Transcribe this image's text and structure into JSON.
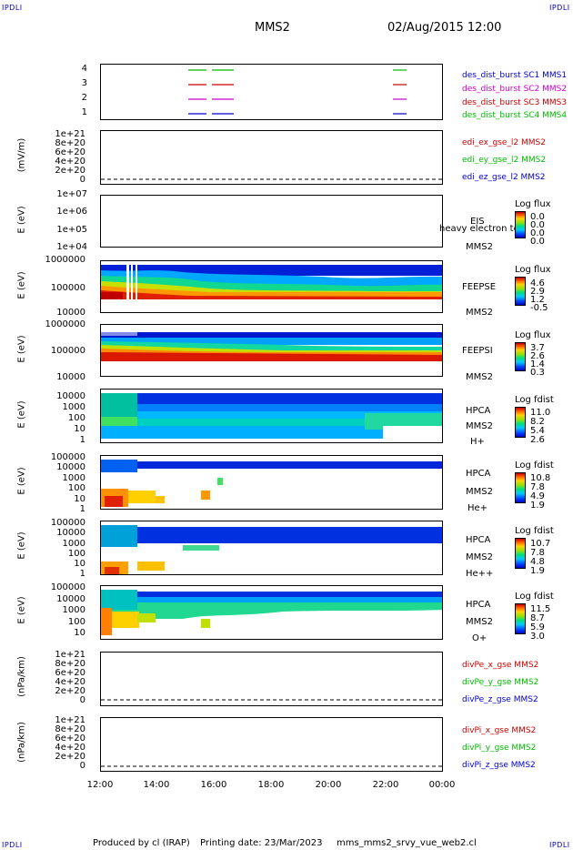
{
  "corners": {
    "tl": "IPDLI",
    "tr": "IPDLI",
    "bl": "IPDLI",
    "br": "IPDLI"
  },
  "header": {
    "spacecraft": "MMS2",
    "datetime": "02/Aug/2015 12:00"
  },
  "x_ticks": [
    "12:00",
    "14:00",
    "16:00",
    "18:00",
    "20:00",
    "22:00",
    "00:00"
  ],
  "footer": {
    "produced": "Produced by cl (IRAP)",
    "printing": "Printing date: 23/Mar/2023",
    "file": "mms_mms2_srvy_vue_web2.cl"
  },
  "chart_data": [
    {
      "type": "line",
      "id": "burst",
      "y_ticks": [
        "4",
        "3",
        "2",
        "1"
      ],
      "legend": [
        {
          "label": "des_dist_burst SC1 MMS1",
          "color": "#0000cc"
        },
        {
          "label": "des_dist_burst SC2 MMS2",
          "color": "#cc00cc"
        },
        {
          "label": "des_dist_burst SC3 MMS3",
          "color": "#cc0000"
        },
        {
          "label": "des_dist_burst SC4 MMS4",
          "color": "#00bb00"
        }
      ]
    },
    {
      "type": "line",
      "id": "edi",
      "ylabel": "(mV/m)",
      "y_ticks": [
        "1e+21",
        "8e+20",
        "6e+20",
        "4e+20",
        "2e+20",
        "0"
      ],
      "legend": [
        {
          "label": "edi_ex_gse_l2 MMS2",
          "color": "#cc0000"
        },
        {
          "label": "edi_ey_gse_l2 MMS2",
          "color": "#00bb00"
        },
        {
          "label": "edi_ez_gse_l2 MMS2",
          "color": "#0000cc"
        }
      ]
    },
    {
      "type": "heatmap",
      "id": "eis",
      "ylabel": "E (eV)",
      "y_ticks": [
        "1e+07",
        "1e+06",
        "1e+05",
        "1e+04"
      ],
      "labels": [
        "EIS",
        "MMS2"
      ],
      "overlay": "heavy electron to",
      "cbar_title": "Log flux",
      "cbar_values": [
        "0.0",
        "0.0",
        "0.0",
        "0.0"
      ]
    },
    {
      "type": "heatmap",
      "id": "feepse",
      "ylabel": "E (eV)",
      "y_ticks": [
        "1000000",
        "100000",
        "10000"
      ],
      "labels": [
        "FEEPSE",
        "MMS2"
      ],
      "cbar_title": "Log flux",
      "cbar_values": [
        "4.6",
        "2.9",
        "1.2",
        "-0.5"
      ]
    },
    {
      "type": "heatmap",
      "id": "feepsi",
      "ylabel": "E (eV)",
      "y_ticks": [
        "1000000",
        "100000",
        "10000"
      ],
      "labels": [
        "FEEPSI",
        "MMS2"
      ],
      "cbar_title": "Log flux",
      "cbar_values": [
        "3.7",
        "2.6",
        "1.4",
        "0.3"
      ]
    },
    {
      "type": "heatmap",
      "id": "hpca_h",
      "ylabel": "E (eV)",
      "y_ticks": [
        "10000",
        "1000",
        "100",
        "10",
        "1"
      ],
      "labels": [
        "HPCA",
        "MMS2",
        "H+"
      ],
      "cbar_title": "Log fdist",
      "cbar_values": [
        "11.0",
        "8.2",
        "5.4",
        "2.6"
      ]
    },
    {
      "type": "heatmap",
      "id": "hpca_he",
      "ylabel": "E (eV)",
      "y_ticks": [
        "100000",
        "10000",
        "1000",
        "100",
        "10",
        "1"
      ],
      "labels": [
        "HPCA",
        "MMS2",
        "He+"
      ],
      "cbar_title": "Log fdist",
      "cbar_values": [
        "10.8",
        "7.8",
        "4.9",
        "1.9"
      ]
    },
    {
      "type": "heatmap",
      "id": "hpca_hepp",
      "ylabel": "E (eV)",
      "y_ticks": [
        "100000",
        "10000",
        "1000",
        "100",
        "10",
        "1"
      ],
      "labels": [
        "HPCA",
        "MMS2",
        "He++"
      ],
      "cbar_title": "Log fdist",
      "cbar_values": [
        "10.7",
        "7.8",
        "4.8",
        "1.9"
      ]
    },
    {
      "type": "heatmap",
      "id": "hpca_o",
      "ylabel": "E (eV)",
      "y_ticks": [
        "100000",
        "10000",
        "1000",
        "100",
        "10"
      ],
      "labels": [
        "HPCA",
        "MMS2",
        "O+"
      ],
      "cbar_title": "Log fdist",
      "cbar_values": [
        "11.5",
        "8.7",
        "5.9",
        "3.0"
      ]
    },
    {
      "type": "line",
      "id": "divpe",
      "ylabel": "(nPa/km)",
      "y_ticks": [
        "1e+21",
        "8e+20",
        "6e+20",
        "4e+20",
        "2e+20",
        "0"
      ],
      "legend": [
        {
          "label": "divPe_x_gse MMS2",
          "color": "#cc0000"
        },
        {
          "label": "divPe_y_gse MMS2",
          "color": "#00bb00"
        },
        {
          "label": "divPe_z_gse MMS2",
          "color": "#0000cc"
        }
      ]
    },
    {
      "type": "line",
      "id": "divpi",
      "ylabel": "(nPa/km)",
      "y_ticks": [
        "1e+21",
        "8e+20",
        "6e+20",
        "4e+20",
        "2e+20",
        "0"
      ],
      "legend": [
        {
          "label": "divPi_x_gse MMS2",
          "color": "#cc0000"
        },
        {
          "label": "divPi_y_gse MMS2",
          "color": "#00bb00"
        },
        {
          "label": "divPi_z_gse MMS2",
          "color": "#0000cc"
        }
      ]
    }
  ]
}
